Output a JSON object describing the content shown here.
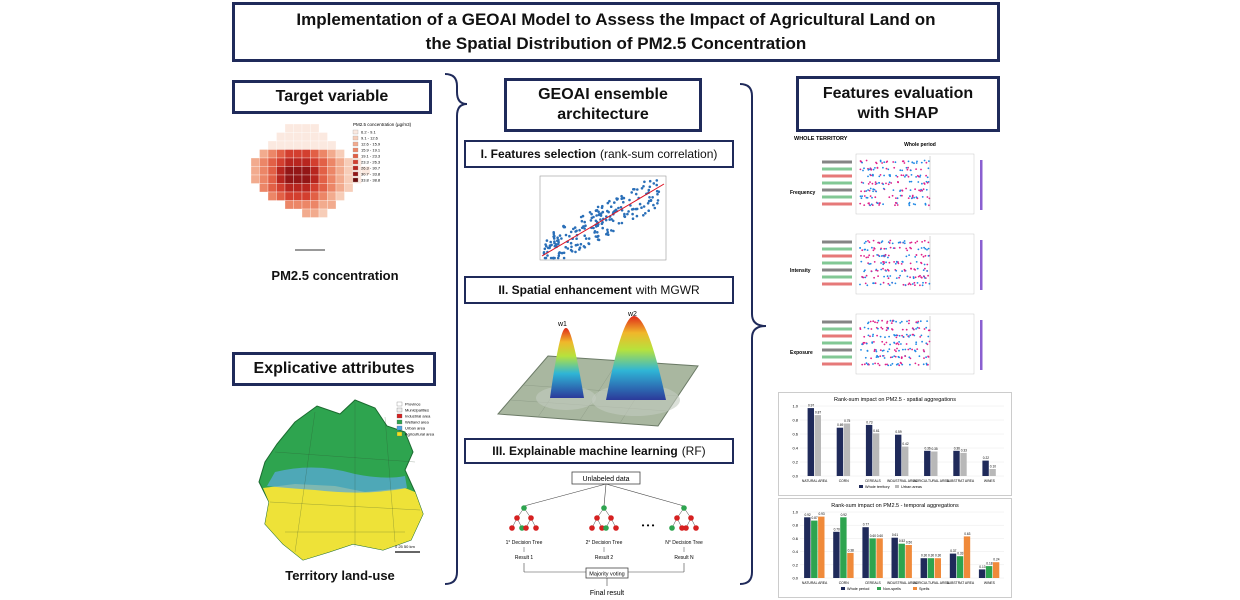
{
  "title": {
    "line1": "Implementation of a GEOAI Model to Assess the Impact of Agricultural Land on",
    "line2": "the Spatial Distribution of PM2.5 Concentration"
  },
  "left": {
    "target_header": "Target variable",
    "target_caption": "PM2.5 concentration",
    "pm_legend": {
      "title": "PM2.5 concentration (µg/m3)",
      "items": [
        "6.2 - 9.1",
        "9.1 - 12.6",
        "12.6 - 15.9",
        "15.9 - 19.1",
        "19.1 - 23.3",
        "23.3 - 26.3",
        "26.3 - 30.7",
        "30.7 - 33.8",
        "33.8 - 38.8"
      ],
      "colors": [
        "#fbe9e0",
        "#f7cdb8",
        "#f2ab8e",
        "#ec8667",
        "#e26046",
        "#d33f2f",
        "#b8261f",
        "#931616",
        "#6b0d0d"
      ]
    },
    "explicative_header": "Explicative attributes",
    "landuse_caption": "Territory land-use",
    "landuse_legend": {
      "items": [
        "Province",
        "Municipalities",
        "Industrial area",
        "Wetland area",
        "Urban area",
        "Agricultural area"
      ],
      "colors": [
        "#ffffff",
        "#eeeeee",
        "#d62020",
        "#2ea44f",
        "#4aa3df",
        "#f2e21c"
      ]
    },
    "scale_text": "0   25   50 km"
  },
  "middle": {
    "header_line1": "GEOAI ensemble",
    "header_line2": "architecture",
    "step1_bold": "I. Features selection",
    "step1_rest": "(rank-sum correlation)",
    "step2_bold": "II. Spatial enhancement",
    "step2_rest": "with MGWR",
    "step3_bold": "III. Explainable machine learning",
    "step3_rest": "(RF)",
    "tree": {
      "unlabeled": "Unlabeled data",
      "trees": [
        "1° Decision Tree",
        "2° Decision Tree",
        "N° Decision Tree"
      ],
      "results": [
        "Result 1",
        "Result 2",
        "Result N"
      ],
      "dots": "• • •",
      "voting": "Majority voting",
      "final": "Final result"
    },
    "mgwr_labels": [
      "w1",
      "w2"
    ]
  },
  "right": {
    "header_line1": "Features evaluation",
    "header_line2": "with SHAP",
    "whole_territory": "WHOLE TERRITORY",
    "whole_period": "Whole period",
    "rows": [
      "Frequency",
      "Intensity",
      "Exposure"
    ],
    "chart1_title": "Rank-sum impact on PM2.5 - spatial aggregations",
    "chart2_title": "Rank-sum impact on PM2.5 - temporal aggregations",
    "chart1_legend": [
      "Whole territory",
      "Urban areas"
    ],
    "chart2_legend": [
      "Whole period",
      "Non-spells",
      "Spells"
    ]
  },
  "chart_data": [
    {
      "type": "bar",
      "title": "Rank-sum impact on PM2.5 - spatial aggregations",
      "categories": [
        "NATURAL AREA",
        "CORN",
        "CEREALS",
        "INDUSTRIAL AREA",
        "AGRICULTURAL AREA",
        "SUBSTRAT AREA",
        "WINES"
      ],
      "series": [
        {
          "name": "Whole territory",
          "values": [
            0.97,
            0.69,
            0.73,
            0.59,
            0.36,
            0.36,
            0.22
          ],
          "color": "#1f2a5a"
        },
        {
          "name": "Urban areas",
          "values": [
            0.87,
            0.75,
            0.61,
            0.42,
            0.35,
            0.33,
            0.1
          ],
          "color": "#b8b8b8"
        }
      ],
      "ylim": [
        0,
        1.0
      ]
    },
    {
      "type": "bar",
      "title": "Rank-sum impact on PM2.5 - temporal aggregations",
      "categories": [
        "NATURAL AREA",
        "CORN",
        "CEREALS",
        "INDUSTRIAL AREA",
        "AGRICULTURAL AREA",
        "SUBSTRAT AREA",
        "WINES"
      ],
      "series": [
        {
          "name": "Whole period",
          "values": [
            0.92,
            0.7,
            0.77,
            0.61,
            0.3,
            0.37,
            0.13
          ],
          "color": "#1f2a5a"
        },
        {
          "name": "Non-spells",
          "values": [
            0.87,
            0.92,
            0.6,
            0.52,
            0.3,
            0.33,
            0.18
          ],
          "color": "#2ea44f"
        },
        {
          "name": "Spells",
          "values": [
            0.93,
            0.38,
            0.6,
            0.5,
            0.3,
            0.63,
            0.24
          ],
          "color": "#f08a3a"
        }
      ],
      "ylim": [
        0,
        1.0
      ]
    }
  ]
}
